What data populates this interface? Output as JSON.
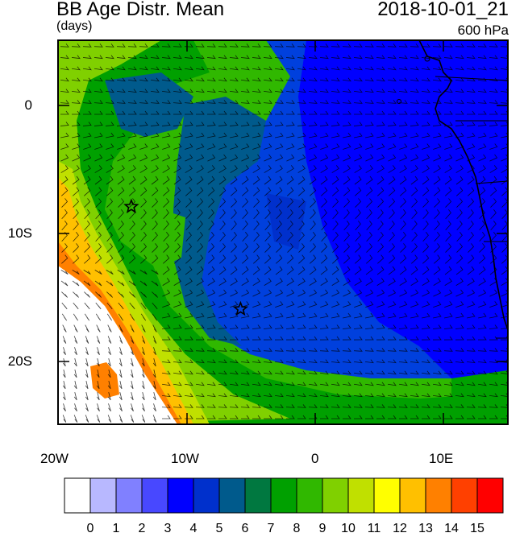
{
  "header": {
    "title": "BB Age Distr. Mean",
    "units": "(days)",
    "datetime": "2018-10-01_21",
    "level": "600 hPa"
  },
  "axes": {
    "x_ticks": [
      "20W",
      "10W",
      "0",
      "10E"
    ],
    "y_ticks": [
      "0",
      "10S",
      "20S"
    ],
    "lon_range": [
      -20,
      15
    ],
    "lat_range": [
      -25,
      5
    ]
  },
  "markers": {
    "icon": "star-icon",
    "points": [
      {
        "lon": -14.3,
        "lat": -8.0
      },
      {
        "lon": -5.8,
        "lat": -16.0
      }
    ]
  },
  "colorbar": {
    "labels": [
      "0",
      "1",
      "2",
      "3",
      "4",
      "5",
      "6",
      "7",
      "8",
      "9",
      "10",
      "11",
      "12",
      "13",
      "14",
      "15"
    ],
    "colors": [
      "#ffffff",
      "#b8b8ff",
      "#8080ff",
      "#4848ff",
      "#0000ff",
      "#0030cc",
      "#005a8c",
      "#007840",
      "#00a000",
      "#30b800",
      "#80d000",
      "#c0e000",
      "#ffff00",
      "#ffc000",
      "#ff8000",
      "#ff4000",
      "#ff0000"
    ]
  }
}
